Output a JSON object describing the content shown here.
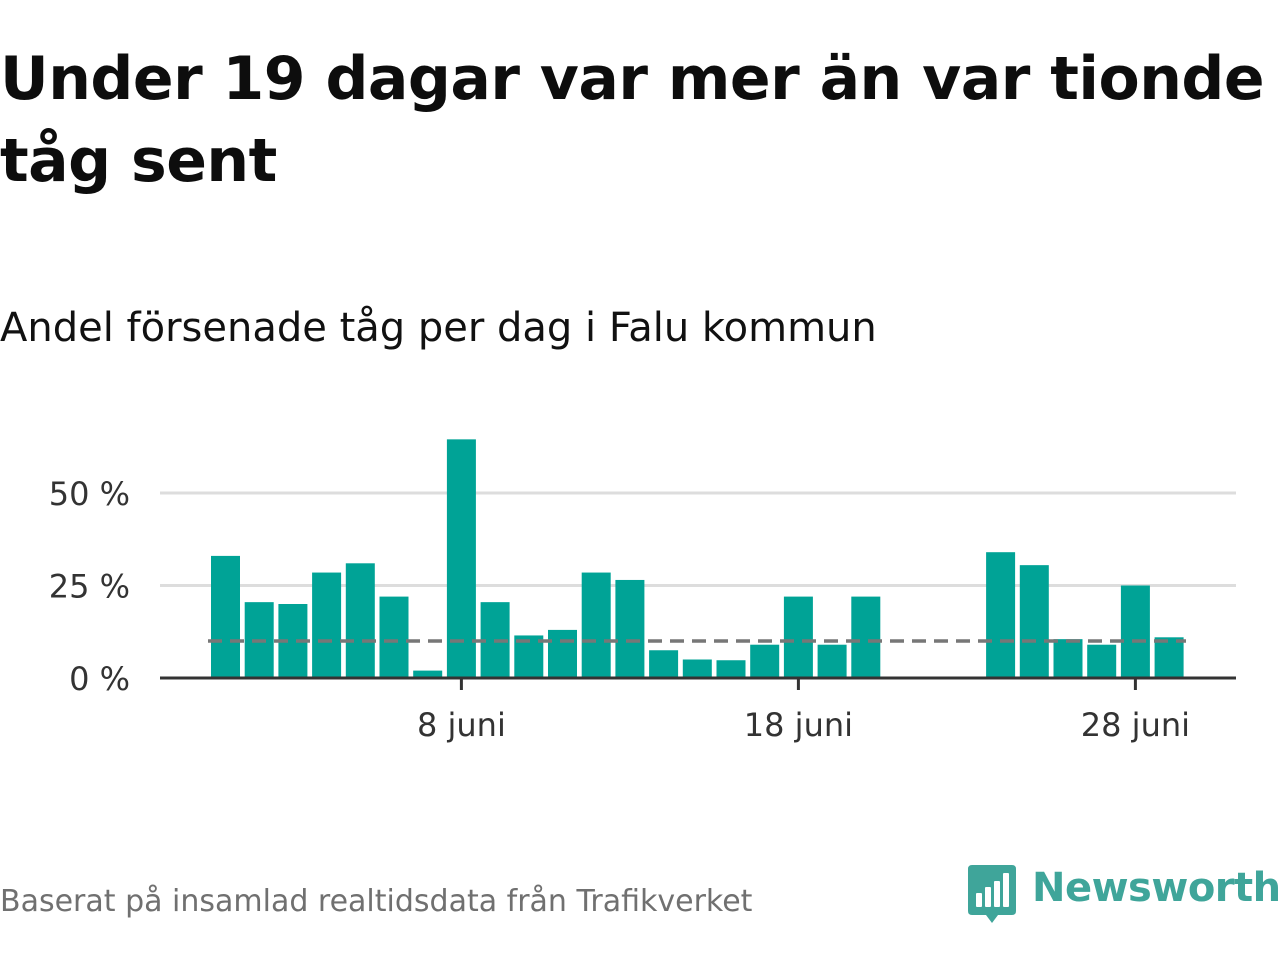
{
  "title": "Under 19 dagar var mer än var tionde tåg sent",
  "subtitle": "Andel försenade tåg per dag i Falu kommun",
  "source": "Baserat på insamlad realtidsdata från Trafikverket",
  "brand": {
    "name": "Newsworthy",
    "icon": "newsworthy-logo-icon",
    "color": "#3fa59a"
  },
  "colors": {
    "bar": "#00a396",
    "grid": "#dddddd",
    "axis": "#333333",
    "reference": "#777777"
  },
  "chart_data": {
    "type": "bar",
    "ylabel": "",
    "xlabel": "",
    "ylim": [
      0,
      65
    ],
    "grid": true,
    "x_start_day": 1,
    "x_end_day": 30,
    "xticks": [
      {
        "day": 8,
        "label": "8 juni"
      },
      {
        "day": 18,
        "label": "18 juni"
      },
      {
        "day": 28,
        "label": "28 juni"
      }
    ],
    "yticks": [
      {
        "value": 0,
        "label": "0 %"
      },
      {
        "value": 25,
        "label": "25 %"
      },
      {
        "value": 50,
        "label": "50 %"
      }
    ],
    "reference_line": 10,
    "days": [
      1,
      2,
      3,
      4,
      5,
      6,
      7,
      8,
      9,
      10,
      11,
      12,
      13,
      14,
      15,
      16,
      17,
      18,
      19,
      20,
      21,
      22,
      23,
      24,
      25,
      26,
      27,
      28,
      29,
      30
    ],
    "values": [
      33,
      20.5,
      20,
      28.5,
      31,
      22,
      2,
      64.5,
      20.5,
      11.5,
      13,
      28.5,
      26.5,
      7.5,
      5,
      4.8,
      9,
      22,
      9,
      22,
      null,
      null,
      null,
      34,
      30.5,
      10.5,
      9,
      25,
      11,
      null
    ]
  }
}
